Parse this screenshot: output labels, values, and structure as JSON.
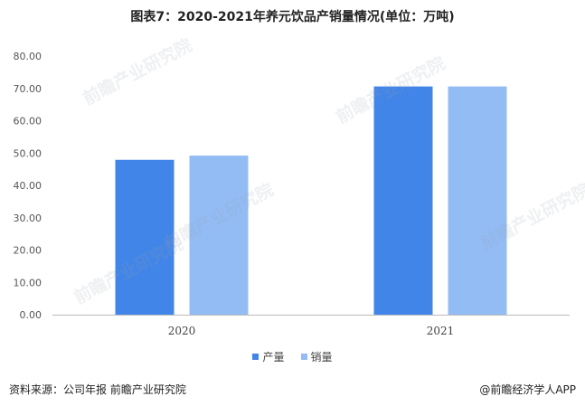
{
  "title": "图表7：2020-2021年养元饮品产销量情况(单位：万吨)",
  "chart_data": {
    "type": "bar",
    "categories": [
      "2020",
      "2021"
    ],
    "series": [
      {
        "name": "产量",
        "values": [
          47.9,
          70.6
        ],
        "color": "#4285e8"
      },
      {
        "name": "销量",
        "values": [
          49.2,
          70.6
        ],
        "color": "#93bcf5"
      }
    ],
    "ylim": [
      0,
      80
    ],
    "yticks": [
      "0.00",
      "10.00",
      "20.00",
      "30.00",
      "40.00",
      "50.00",
      "60.00",
      "70.00",
      "80.00"
    ],
    "legend_position": "bottom",
    "grid": false
  },
  "watermark": "前瞻产业研究院",
  "footer": {
    "source": "资料来源：公司年报 前瞻产业研究院",
    "brand": "@前瞻经济学人APP"
  }
}
